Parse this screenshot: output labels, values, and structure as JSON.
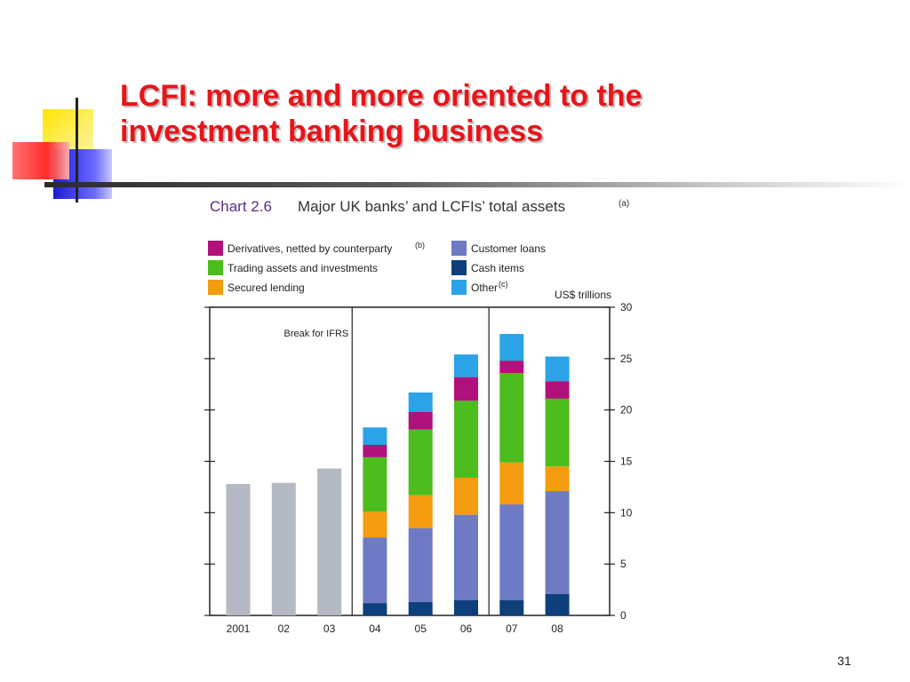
{
  "slide": {
    "title": "LCFI: more and more oriented to the investment banking business",
    "page_number": "31"
  },
  "chart_data": {
    "type": "bar",
    "stacked": true,
    "chart_label": "Chart 2.6",
    "title": "Major UK banks’ and LCFIs’ total assets",
    "title_note": "(a)",
    "ylabel": "US$ trillions",
    "ylim": [
      0,
      30
    ],
    "yticks": [
      "0",
      "5",
      "10",
      "15",
      "20",
      "25",
      "30"
    ],
    "categories": [
      "2001",
      "02",
      "03",
      "04",
      "05",
      "06",
      "07",
      "08"
    ],
    "annotation": "Break for IFRS",
    "pre_ifrs_totals": [
      12.8,
      12.9,
      14.3,
      null,
      null,
      null,
      null,
      null
    ],
    "pre_ifrs_color": "#b4b9c4",
    "series": [
      {
        "name": "Cash items",
        "note": "",
        "color": "#0d3f7a",
        "values": [
          null,
          null,
          null,
          1.2,
          1.3,
          1.5,
          1.5,
          2.1
        ]
      },
      {
        "name": "Customer loans",
        "note": "",
        "color": "#6e7bc4",
        "values": [
          null,
          null,
          null,
          6.4,
          7.2,
          8.3,
          9.3,
          10.0
        ]
      },
      {
        "name": "Secured lending",
        "note": "",
        "color": "#f59c10",
        "values": [
          null,
          null,
          null,
          2.5,
          3.2,
          3.6,
          4.1,
          2.4
        ]
      },
      {
        "name": "Trading assets and investments",
        "note": "",
        "color": "#4cbc1e",
        "values": [
          null,
          null,
          null,
          5.3,
          6.4,
          7.5,
          8.7,
          6.6
        ]
      },
      {
        "name": "Derivatives, netted by counterparty",
        "note": "(b)",
        "color": "#b0117a",
        "values": [
          null,
          null,
          null,
          1.2,
          1.7,
          2.3,
          1.2,
          1.7
        ]
      },
      {
        "name": "Other",
        "note": "(c)",
        "color": "#2aa4e6",
        "values": [
          null,
          null,
          null,
          1.7,
          1.9,
          2.2,
          2.6,
          2.4
        ]
      }
    ],
    "legend": {
      "left": [
        "Derivatives, netted by counterparty",
        "Trading assets and investments",
        "Secured lending"
      ],
      "right": [
        "Customer loans",
        "Cash items",
        "Other"
      ]
    },
    "break_lines_after": [
      "03",
      "06"
    ],
    "grid": false,
    "colors": {
      "title_label": "#5a2d82",
      "title": "#333333",
      "slide_title": "#e8141a"
    }
  }
}
